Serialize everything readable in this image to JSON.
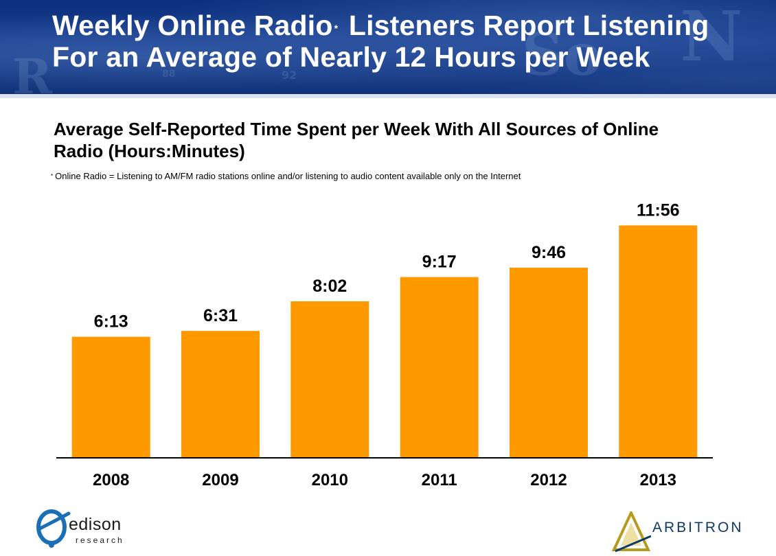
{
  "header": {
    "title_part1": "Weekly Online Radio",
    "title_asterisk": "*",
    "title_part2": " Listeners Report Listening",
    "title_line2": "For an Average of Nearly 12 Hours per Week"
  },
  "footnote": {
    "marker": "*",
    "text": "Online Radio = Listening to AM/FM radio stations online and/or listening to audio content available only on the Internet"
  },
  "colors": {
    "banner": "#0b2f7c",
    "bar": "#ff9900",
    "axis": "#000000"
  },
  "chart_data": {
    "type": "bar",
    "title": "Average Self-Reported Time Spent per Week With All Sources of Online Radio (Hours:Minutes)",
    "categories": [
      "2008",
      "2009",
      "2010",
      "2011",
      "2012",
      "2013"
    ],
    "values": [
      373,
      391,
      482,
      557,
      586,
      716
    ],
    "value_unit": "minutes",
    "data_labels": [
      "6:13",
      "6:31",
      "8:02",
      "9:17",
      "9:46",
      "11:56"
    ],
    "ylim": [
      0,
      776
    ],
    "grid": false,
    "legend": "none"
  },
  "logos": {
    "edison": {
      "word": "edison",
      "sub": "research"
    },
    "arbitron": {
      "word": "ARBITRON"
    }
  }
}
